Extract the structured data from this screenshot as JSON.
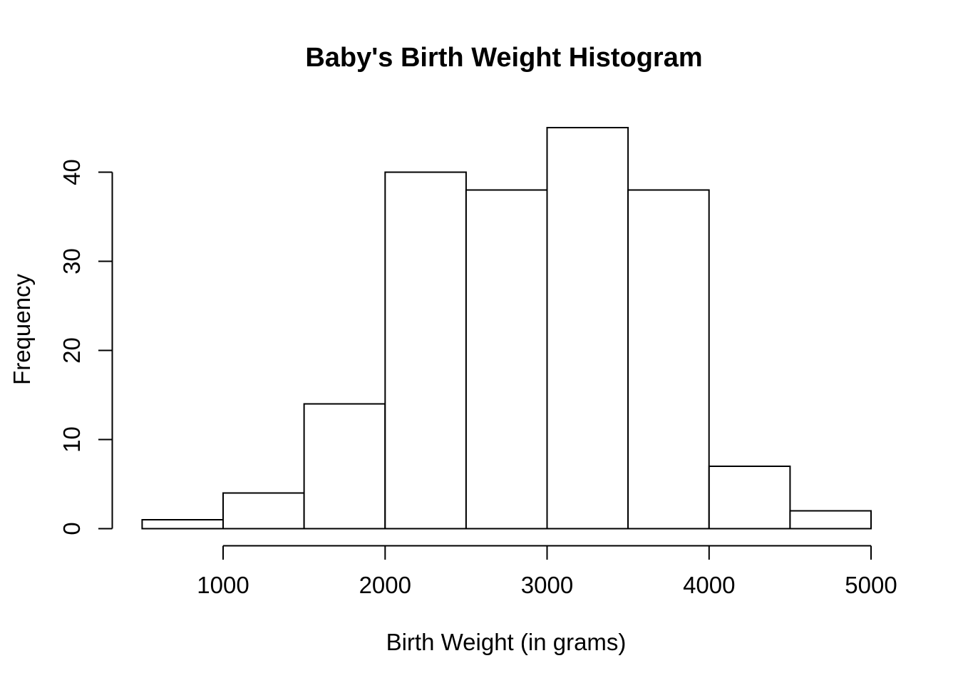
{
  "chart_data": {
    "type": "bar",
    "subtype": "histogram",
    "title": "Baby's Birth Weight Histogram",
    "xlabel": "Birth Weight (in grams)",
    "ylabel": "Frequency",
    "bin_width": 500,
    "bin_edges": [
      500,
      1000,
      1500,
      2000,
      2500,
      3000,
      3500,
      4000,
      4500,
      5000
    ],
    "counts": [
      1,
      4,
      14,
      40,
      38,
      45,
      38,
      7,
      2
    ],
    "x_ticks": [
      1000,
      2000,
      3000,
      4000,
      5000
    ],
    "y_ticks": [
      0,
      10,
      20,
      30,
      40
    ],
    "xlim": [
      500,
      5000
    ],
    "ylim": [
      0,
      45
    ],
    "grid": false,
    "legend": false,
    "bar_fill": "#ffffff",
    "bar_stroke": "#000000",
    "axis_color": "#000000",
    "text_color": "#000000",
    "background": "#ffffff"
  }
}
